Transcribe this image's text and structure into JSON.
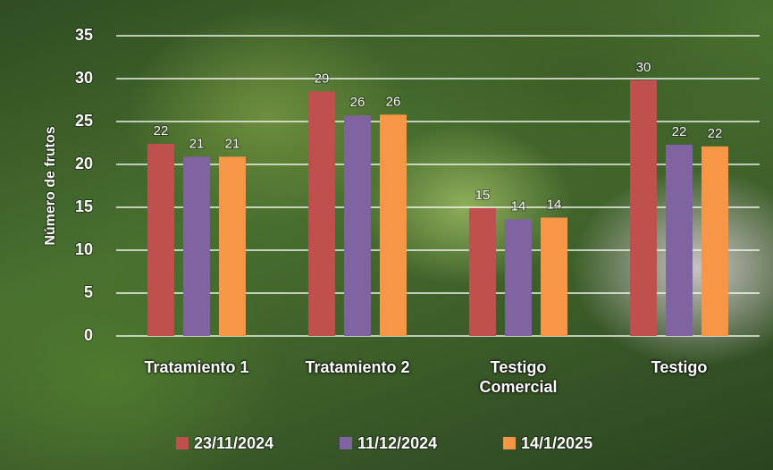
{
  "chart_data": {
    "type": "bar",
    "y_label": "Número de frutos",
    "categories": [
      "Tratamiento 1",
      "Tratamiento 2",
      "Testigo Comercial",
      "Testigo"
    ],
    "series": [
      {
        "name": "23/11/2024",
        "color": "#c0504d",
        "values": [
          22.4,
          28.5,
          14.9,
          29.8
        ],
        "value_labels": [
          "22",
          "29",
          "15",
          "30"
        ]
      },
      {
        "name": "11/12/2024",
        "color": "#8064a2",
        "values": [
          20.9,
          25.7,
          13.6,
          22.3
        ],
        "value_labels": [
          "21",
          "26",
          "14",
          "22"
        ]
      },
      {
        "name": "14/1/2025",
        "color": "#f79646",
        "values": [
          20.9,
          25.8,
          13.8,
          22.1
        ],
        "value_labels": [
          "21",
          "26",
          "14",
          "22"
        ]
      }
    ],
    "ylim": [
      0,
      35
    ],
    "yticks": [
      0,
      5,
      10,
      15,
      20,
      25,
      30,
      35
    ],
    "grid": true,
    "legend": "bottom"
  }
}
